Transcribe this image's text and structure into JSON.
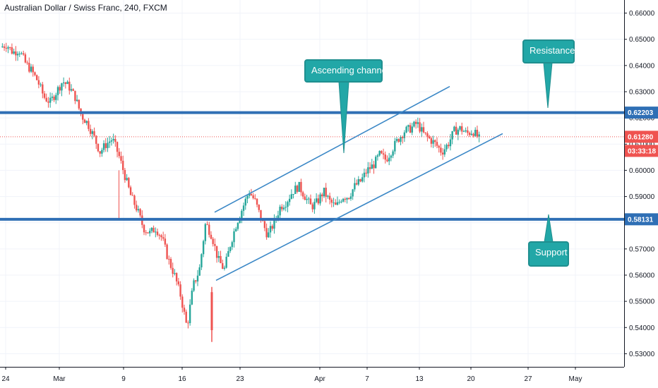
{
  "header": {
    "title": "Australian Dollar / Swiss Franc, 240, FXCM"
  },
  "annotations": {
    "ascending": "Ascending channel",
    "resistance": "Resistance",
    "support": "Support"
  },
  "price_labels": {
    "resistance": "0.62203",
    "current": "0.61280",
    "countdown": "03:33:18",
    "support": "0.58131"
  },
  "colors": {
    "up": "#26a69a",
    "down": "#ef5350",
    "level": "#2f6fb5",
    "channel": "#3a87c6",
    "callout": "#22a7a7",
    "current": "#ef5350"
  },
  "chart_data": {
    "type": "candlestick",
    "title": "Australian Dollar / Swiss Franc, 240, FXCM",
    "ylim": [
      0.525,
      0.665
    ],
    "y_ticks": [
      "0.66000",
      "0.65000",
      "0.64000",
      "0.63000",
      "0.62000",
      "0.61000",
      "0.60000",
      "0.59000",
      "0.58000",
      "0.57000",
      "0.56000",
      "0.55000",
      "0.54000",
      "0.53000"
    ],
    "x_ticks": [
      "24",
      "Mar",
      "9",
      "16",
      "23",
      "Apr",
      "7",
      "13",
      "20",
      "27",
      "May"
    ],
    "horizontal_levels": [
      0.62203,
      0.58131
    ],
    "current_price": 0.6128,
    "channel_upper": [
      [
        0.584,
        0.632
      ]
    ],
    "channel_lower": [
      [
        0.558,
        0.614
      ]
    ],
    "price_path": [
      [
        0.647,
        0.648
      ],
      [
        0.645,
        0.646
      ],
      [
        0.641,
        0.638
      ],
      [
        0.634,
        0.628
      ],
      [
        0.626,
        0.63
      ],
      [
        0.634,
        0.632
      ],
      [
        0.628,
        0.621
      ],
      [
        0.618,
        0.613
      ],
      [
        0.607,
        0.61
      ],
      [
        0.612,
        0.606
      ],
      [
        0.598,
        0.59
      ],
      [
        0.585,
        0.578
      ],
      [
        0.576,
        0.578
      ],
      [
        0.574,
        0.566
      ],
      [
        0.56,
        0.552
      ],
      [
        0.54,
        0.556
      ],
      [
        0.562,
        0.58
      ],
      [
        0.575,
        0.566
      ],
      [
        0.562,
        0.572
      ],
      [
        0.58,
        0.586
      ],
      [
        0.592,
        0.588
      ],
      [
        0.581,
        0.575
      ],
      [
        0.58,
        0.586
      ],
      [
        0.588,
        0.592
      ],
      [
        0.594,
        0.59
      ],
      [
        0.586,
        0.588
      ],
      [
        0.592,
        0.588
      ],
      [
        0.586,
        0.59
      ],
      [
        0.59,
        0.594
      ],
      [
        0.596,
        0.6
      ],
      [
        0.602,
        0.606
      ],
      [
        0.604,
        0.608
      ],
      [
        0.612,
        0.615
      ],
      [
        0.616,
        0.618
      ],
      [
        0.614,
        0.612
      ],
      [
        0.61,
        0.607
      ],
      [
        0.61,
        0.615
      ],
      [
        0.616,
        0.614
      ],
      [
        0.615,
        0.612
      ]
    ]
  }
}
